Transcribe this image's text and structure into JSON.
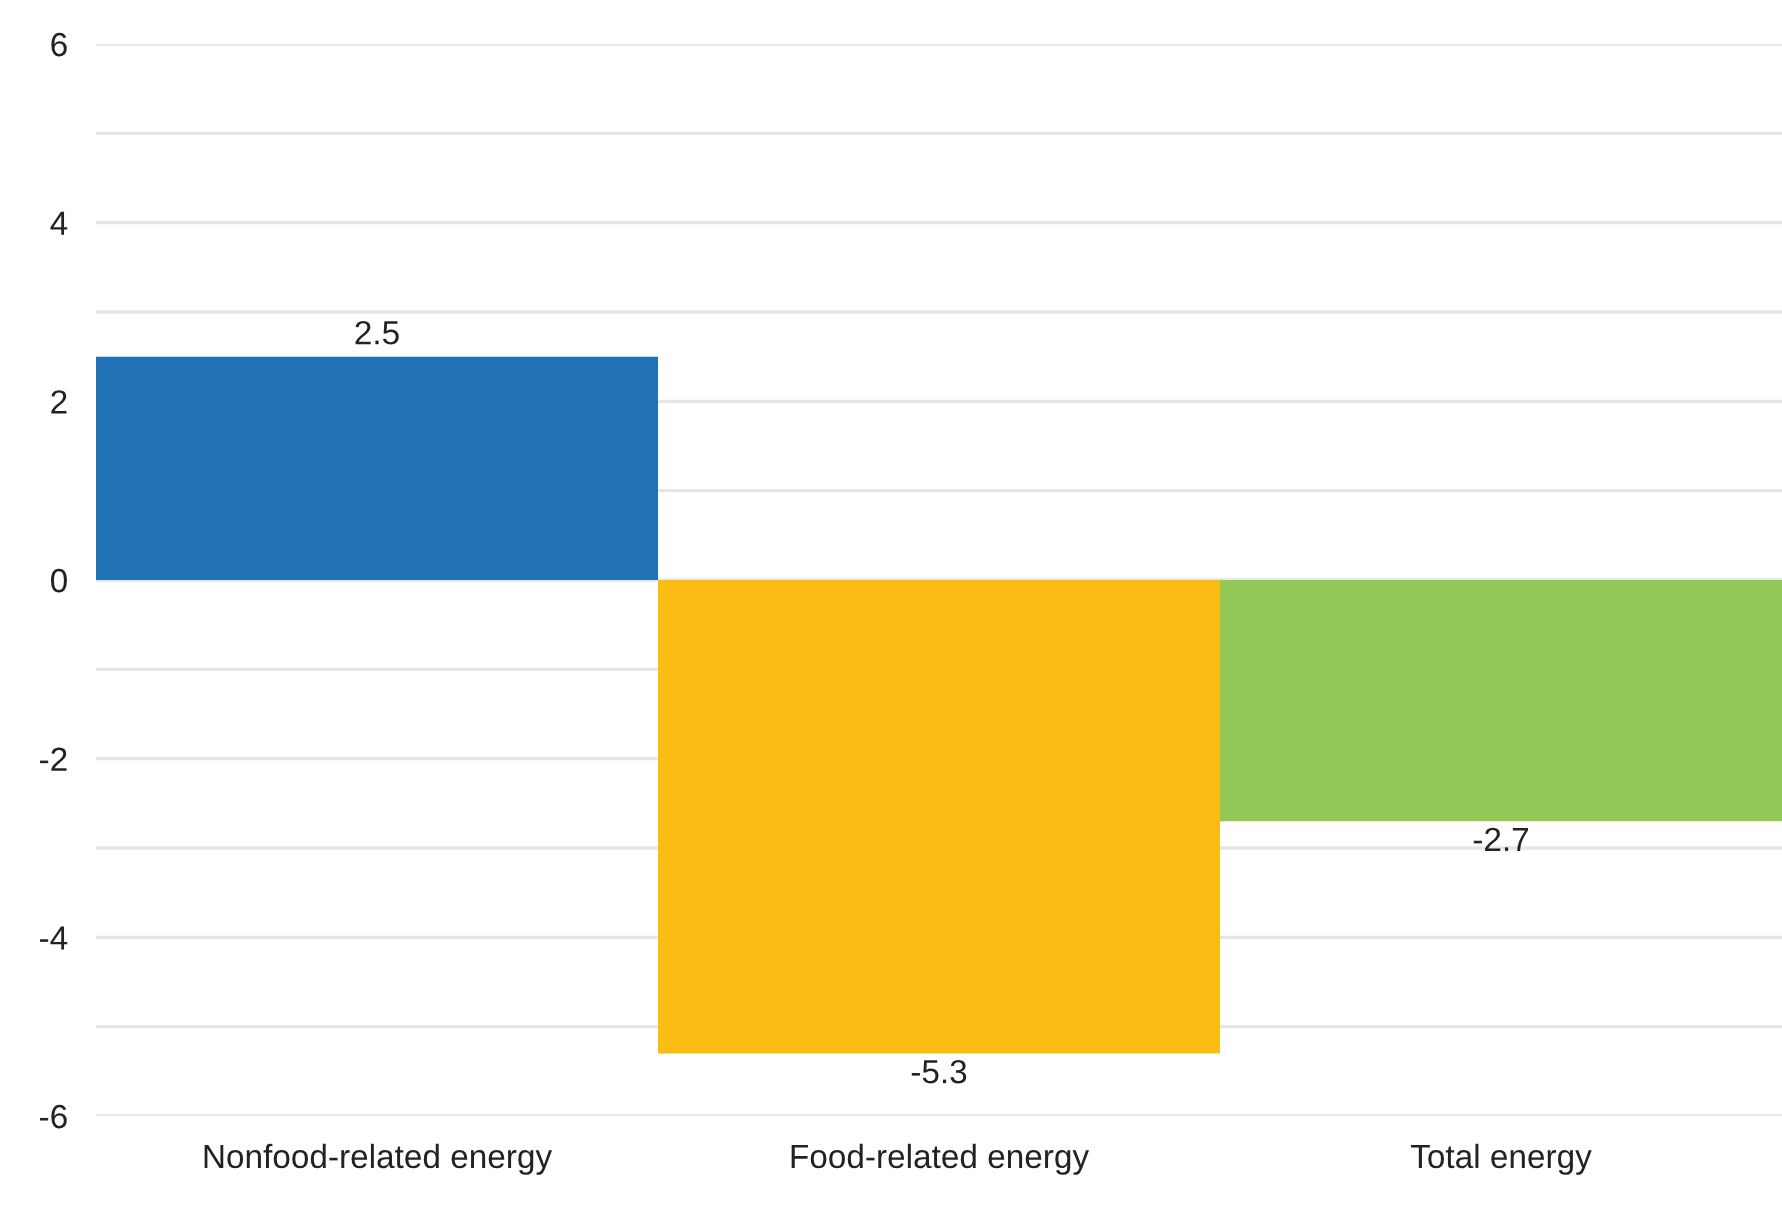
{
  "chart_data": {
    "type": "bar",
    "categories": [
      "Nonfood-related energy",
      "Food-related energy",
      "Total energy"
    ],
    "values": [
      2.5,
      -5.3,
      -2.7
    ],
    "colors": [
      "#2272b6",
      "#fbbd13",
      "#93c856"
    ],
    "data_labels": true,
    "ylim": [
      -6,
      6
    ],
    "yticks": [
      -6,
      {
        "value": -5,
        "label": null
      },
      -4,
      {
        "value": -3,
        "label": null
      },
      -2,
      {
        "value": -1,
        "label": null
      },
      0,
      {
        "value": 1,
        "label": null
      },
      2,
      {
        "value": 3,
        "label": null
      },
      4,
      {
        "value": 5,
        "label": null
      },
      6
    ],
    "grid": "y"
  }
}
